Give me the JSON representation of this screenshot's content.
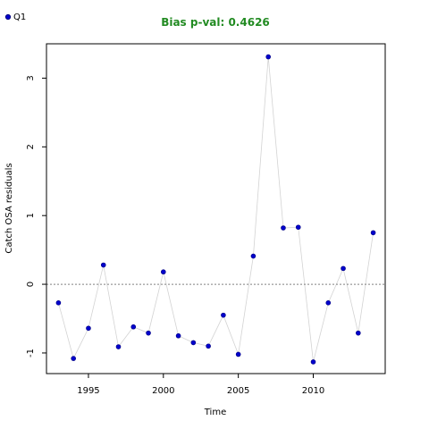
{
  "colors": {
    "title": "#228B22",
    "point": "#0000CD",
    "point_edge": "#000080",
    "line": "#d3d3d3",
    "zero_line": "#808080",
    "frame": "#000000"
  },
  "chart_data": {
    "type": "scatter",
    "title": "Bias p-val: 0.4626",
    "xlabel": "Time",
    "ylabel": "Catch OSA residuals",
    "xlim": [
      1992.2,
      2014.8
    ],
    "ylim": [
      -1.3,
      3.5
    ],
    "xticks": [
      1995,
      2000,
      2005,
      2010
    ],
    "yticks": [
      -1,
      0,
      1,
      2,
      3
    ],
    "reference_line": 0,
    "legend_position": "top-left",
    "series": [
      {
        "name": "Q1",
        "x": [
          1993,
          1994,
          1995,
          1996,
          1997,
          1998,
          1999,
          2000,
          2001,
          2002,
          2003,
          2004,
          2005,
          2006,
          2007,
          2008,
          2009,
          2010,
          2011,
          2012,
          2013,
          2014
        ],
        "y": [
          -0.27,
          -1.08,
          -0.64,
          0.28,
          -0.91,
          -0.62,
          -0.71,
          0.18,
          -0.75,
          -0.85,
          -0.9,
          -0.45,
          -1.02,
          0.41,
          3.31,
          0.82,
          0.83,
          -1.13,
          -0.27,
          0.23,
          -0.71,
          0.75
        ]
      }
    ]
  }
}
